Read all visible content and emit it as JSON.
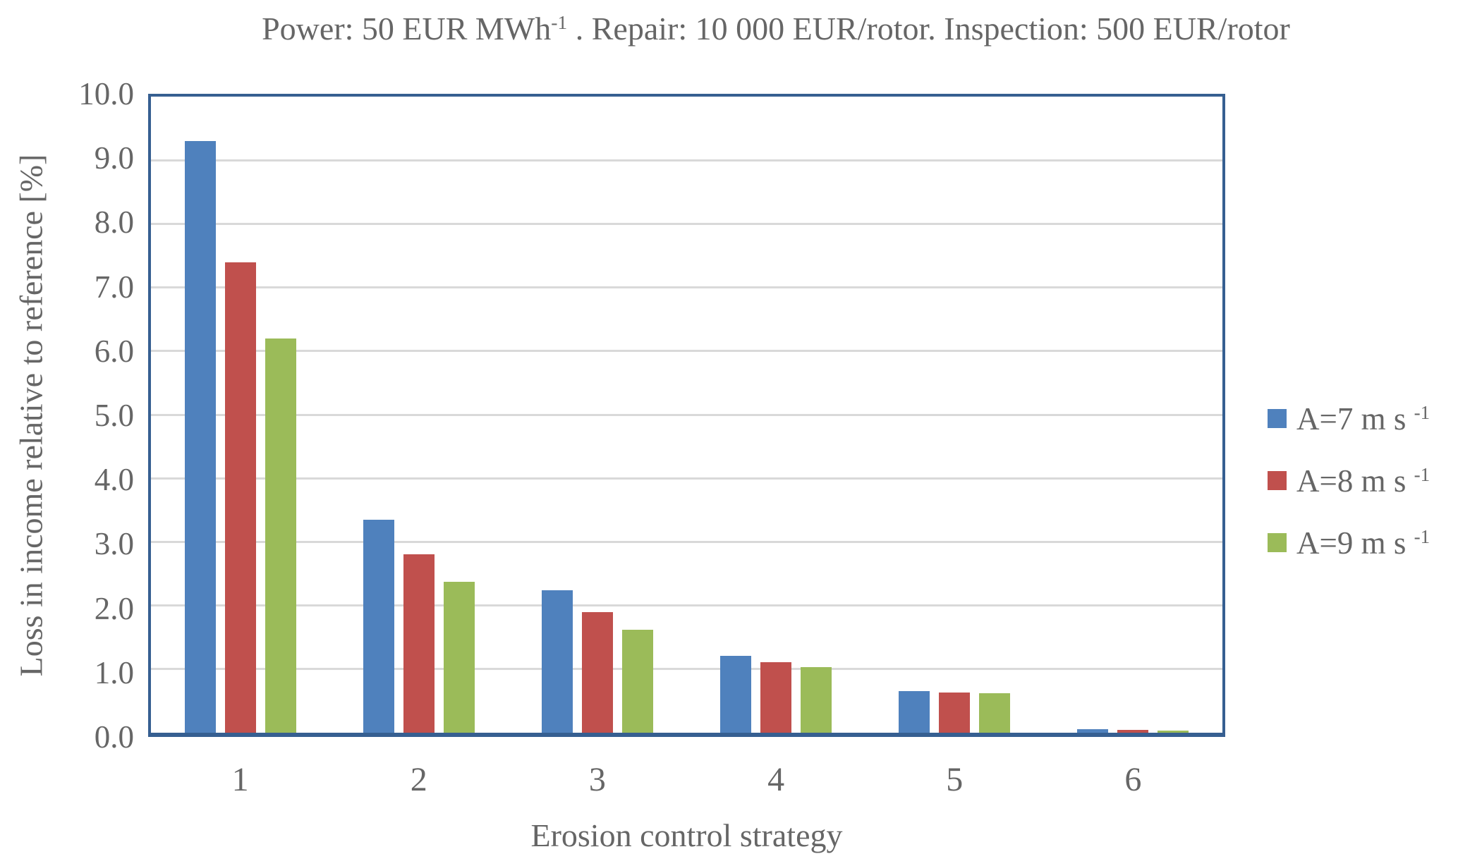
{
  "title": {
    "text": "Power: 50 EUR MWh-1 . Repair: 10 000 EUR/rotor. Inspection: 500 EUR/rotor",
    "parts": [
      {
        "t": "Power: 50 EUR MWh"
      },
      {
        "t": "-1",
        "sup": true
      },
      {
        "t": " . Repair: 10 000 EUR/rotor. Inspection: 500 EUR/rotor"
      }
    ]
  },
  "chart_data": {
    "type": "bar",
    "title": "Power: 50 EUR MWh-1 . Repair: 10 000 EUR/rotor. Inspection: 500 EUR/rotor",
    "categories": [
      "1",
      "2",
      "3",
      "4",
      "5",
      "6"
    ],
    "series": [
      {
        "id": "a7",
        "name": "A=7 m s -1",
        "color": "#4F81BD",
        "values": [
          9.3,
          3.35,
          2.24,
          1.21,
          0.65,
          0.06
        ],
        "label_parts": [
          {
            "t": "A=7 m s "
          },
          {
            "t": "-1",
            "sup": true
          }
        ]
      },
      {
        "id": "a8",
        "name": "A=8 m s -1",
        "color": "#C0504D",
        "values": [
          7.4,
          2.8,
          1.9,
          1.11,
          0.63,
          0.04
        ],
        "label_parts": [
          {
            "t": "A=8 m s "
          },
          {
            "t": "-1",
            "sup": true
          }
        ]
      },
      {
        "id": "a9",
        "name": "A=9 m s -1",
        "color": "#9BBB59",
        "values": [
          6.2,
          2.37,
          1.62,
          1.03,
          0.62,
          0.03
        ],
        "label_parts": [
          {
            "t": "A=9 m s "
          },
          {
            "t": "-1",
            "sup": true
          }
        ]
      }
    ],
    "xlabel": "Erosion control strategy",
    "ylabel": "Loss in income relative to reference [%]",
    "ylim": [
      0,
      10
    ],
    "ytick_step": 1.0,
    "ytick_labels": [
      "10.0",
      "9.0",
      "8.0",
      "7.0",
      "6.0",
      "5.0",
      "4.0",
      "3.0",
      "2.0",
      "1.0",
      "0.0"
    ],
    "grid": "horizontal",
    "legend_position": "right"
  },
  "colors": {
    "series_blue": "#4F81BD",
    "series_red": "#C0504D",
    "series_green": "#9BBB59",
    "plot_border": "#365F91",
    "gridline": "#D9D9D9",
    "text": "#666666"
  }
}
